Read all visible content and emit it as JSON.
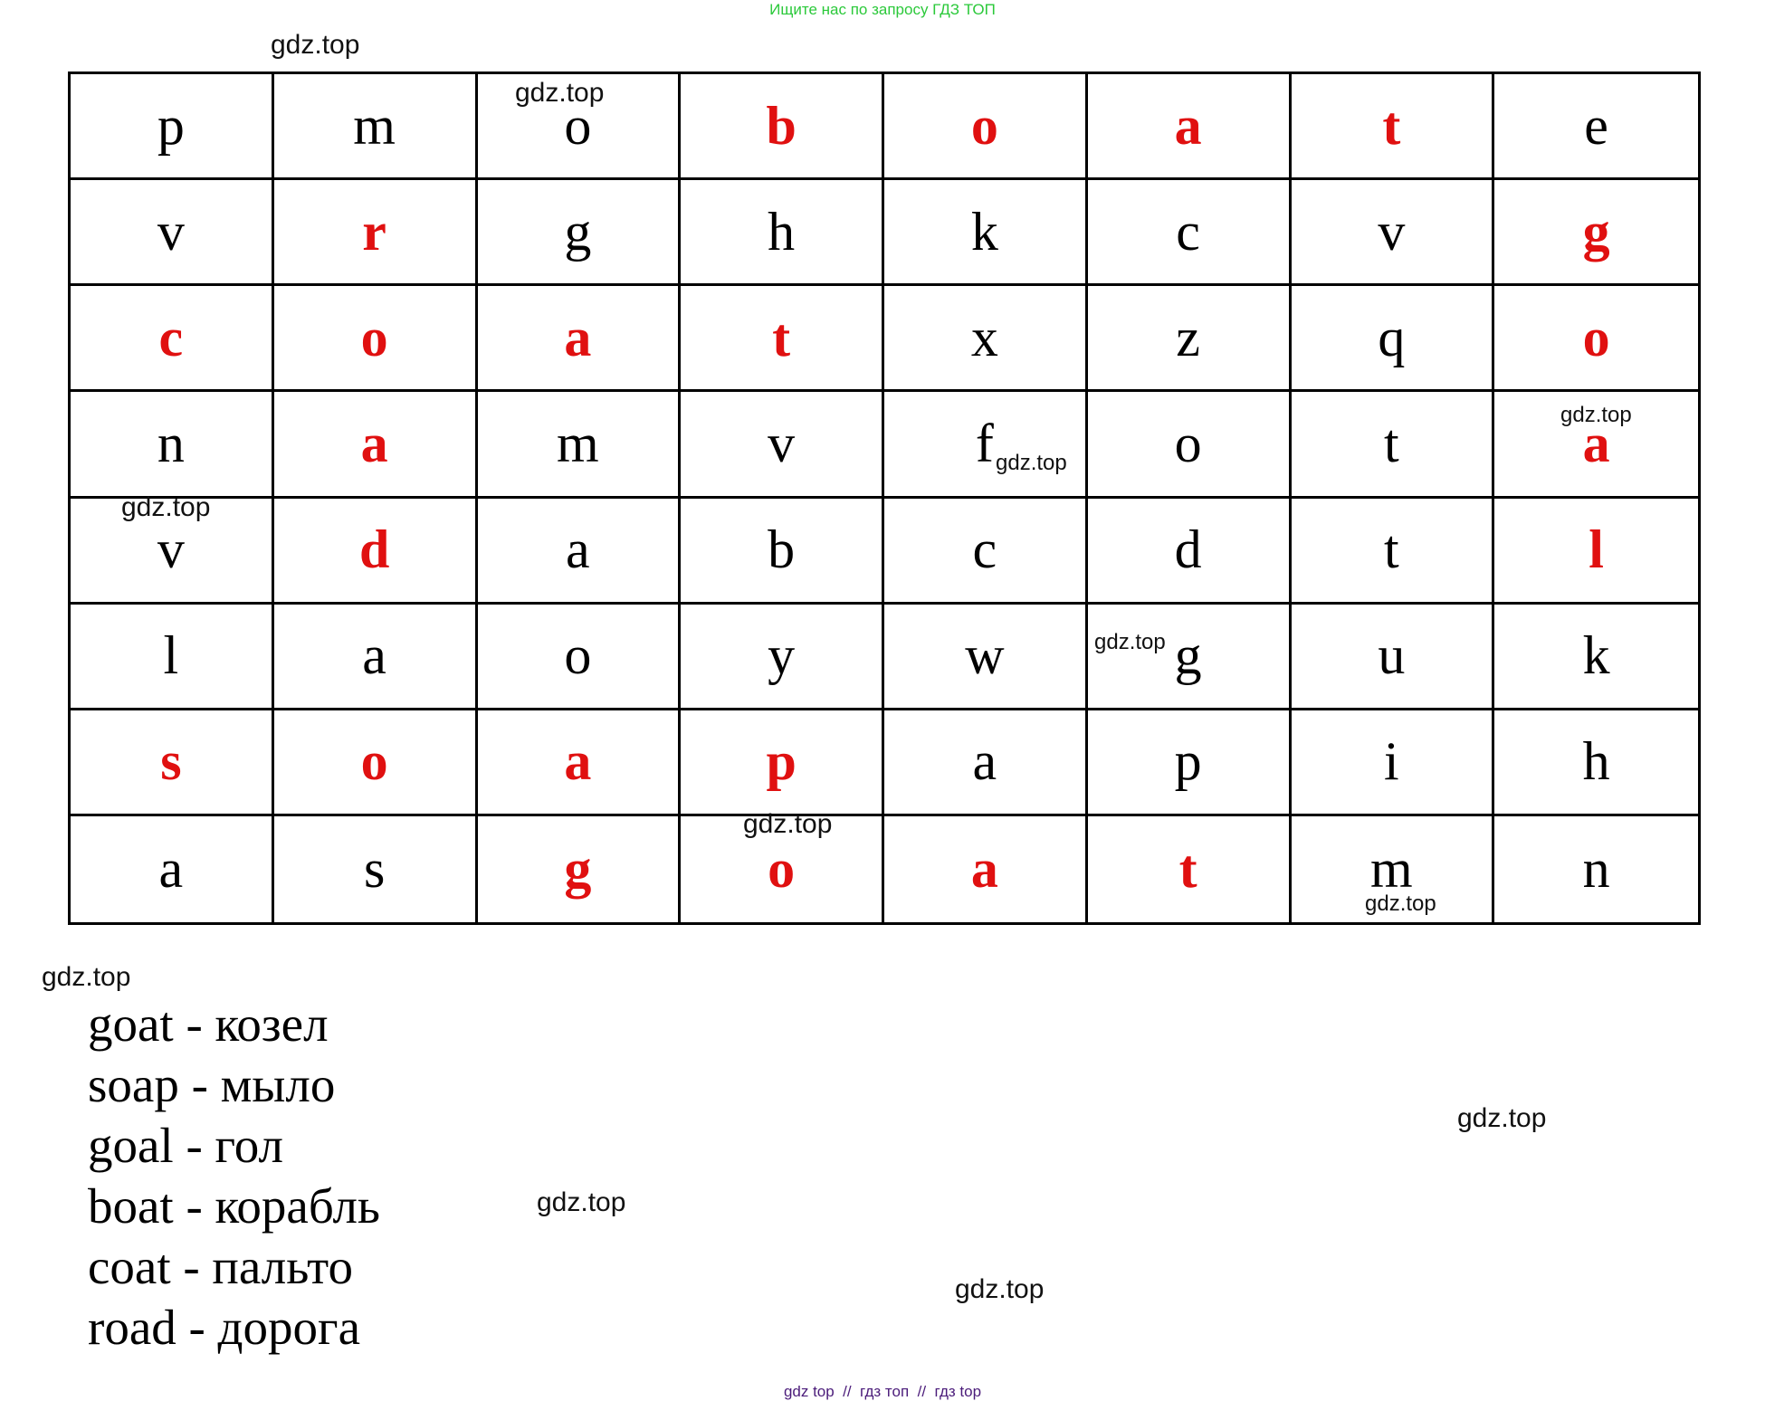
{
  "banner": "Ищите нас по запросу ГДЗ ТОП",
  "footer": "gdz top  //  гдз топ  //  гдз top",
  "colors": {
    "highlight": "#e01010",
    "banner": "#2bc93a",
    "footer": "#4b1c7a"
  },
  "grid": {
    "rows": [
      [
        "p",
        "m",
        "o",
        "b",
        "o",
        "a",
        "t",
        "e"
      ],
      [
        "v",
        "r",
        "g",
        "h",
        "k",
        "c",
        "v",
        "g"
      ],
      [
        "c",
        "o",
        "a",
        "t",
        "x",
        "z",
        "q",
        "o"
      ],
      [
        "n",
        "a",
        "m",
        "v",
        "f",
        "o",
        "t",
        "a"
      ],
      [
        "v",
        "d",
        "a",
        "b",
        "c",
        "d",
        "t",
        "l"
      ],
      [
        "l",
        "a",
        "o",
        "y",
        "w",
        "g",
        "u",
        "k"
      ],
      [
        "s",
        "o",
        "a",
        "p",
        "a",
        "p",
        "i",
        "h"
      ],
      [
        "a",
        "s",
        "g",
        "o",
        "a",
        "t",
        "m",
        "n"
      ]
    ],
    "highlighted": [
      [
        0,
        0,
        0,
        1,
        1,
        1,
        1,
        0
      ],
      [
        0,
        1,
        0,
        0,
        0,
        0,
        0,
        1
      ],
      [
        1,
        1,
        1,
        1,
        0,
        0,
        0,
        1
      ],
      [
        0,
        1,
        0,
        0,
        0,
        0,
        0,
        1
      ],
      [
        0,
        1,
        0,
        0,
        0,
        0,
        0,
        1
      ],
      [
        0,
        0,
        0,
        0,
        0,
        0,
        0,
        0
      ],
      [
        1,
        1,
        1,
        1,
        0,
        0,
        0,
        0
      ],
      [
        0,
        0,
        1,
        1,
        1,
        1,
        0,
        0
      ]
    ]
  },
  "words": [
    "goat - козел",
    "soap - мыло",
    "goal - гол",
    "boat - корабль",
    "coat - пальто",
    "road - дорога"
  ],
  "watermark": "gdz.top"
}
